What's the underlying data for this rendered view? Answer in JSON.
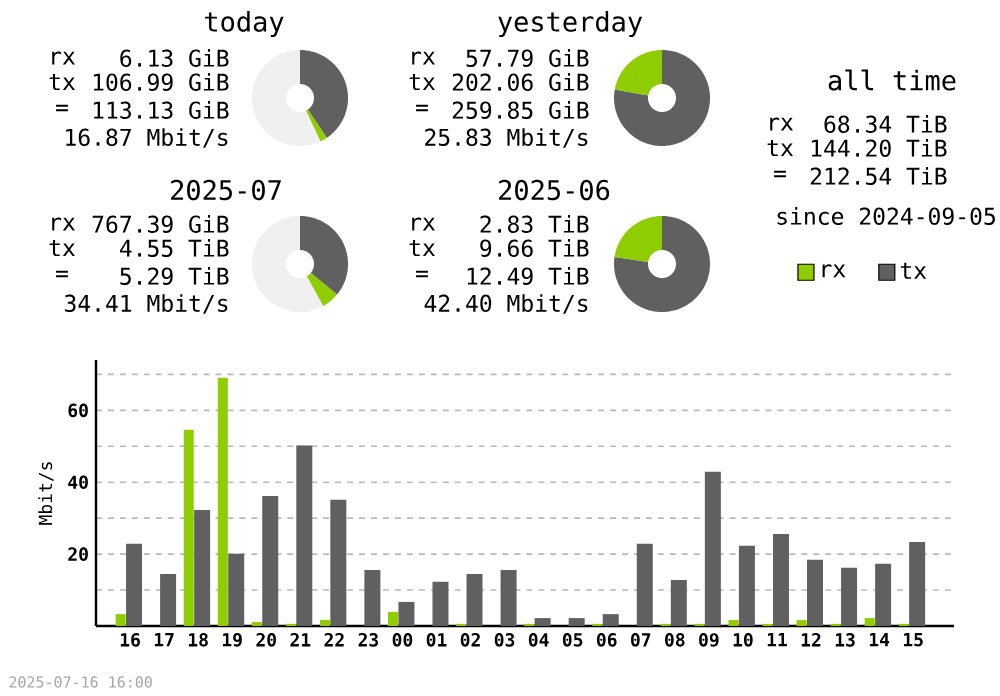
{
  "chart_data": [
    {
      "type": "donut",
      "title": "today",
      "categories": [
        null,
        null,
        null
      ],
      "values": [
        40.6,
        2.4,
        57.0
      ],
      "colors": [
        "#606060",
        "#8fcc00",
        "#f0f0f0"
      ],
      "annotations": [
        "rx",
        "6.13 GiB",
        "tx",
        "106.99 GiB",
        "=",
        "113.13 GiB",
        "16.87 Mbit/s"
      ]
    },
    {
      "type": "donut",
      "title": "yesterday",
      "categories": [
        null,
        null
      ],
      "values": [
        77.8,
        22.2
      ],
      "colors": [
        "#606060",
        "#8fcc00"
      ],
      "annotations": [
        "rx",
        "57.79 GiB",
        "tx",
        "202.06 GiB",
        "=",
        "259.85 GiB",
        "25.83 Mbit/s"
      ]
    },
    {
      "type": "other",
      "title": "all time",
      "annotations": [
        "rx",
        "68.34 TiB",
        "tx",
        "144.20 TiB",
        "=",
        "212.54 TiB",
        "since 2024-09-05"
      ]
    },
    {
      "type": "donut",
      "title": "2025-07",
      "categories": [
        null,
        null,
        null
      ],
      "values": [
        36.0,
        6.0,
        58.0
      ],
      "colors": [
        "#606060",
        "#8fcc00",
        "#f0f0f0"
      ],
      "annotations": [
        "rx",
        "767.39 GiB",
        "tx",
        "4.55 TiB",
        "=",
        "5.29 TiB",
        "34.41 Mbit/s"
      ]
    },
    {
      "type": "donut",
      "title": "2025-06",
      "categories": [
        null,
        null
      ],
      "values": [
        77.3,
        22.7
      ],
      "colors": [
        "#606060",
        "#8fcc00"
      ],
      "annotations": [
        "rx",
        "2.83 TiB",
        "tx",
        "9.66 TiB",
        "=",
        "12.49 TiB",
        "42.40 Mbit/s"
      ]
    },
    {
      "type": "bar",
      "ylabel": "Mbit/s",
      "categories": [
        "16",
        "17",
        "18",
        "19",
        "20",
        "21",
        "22",
        "23",
        "00",
        "01",
        "02",
        "03",
        "04",
        "05",
        "06",
        "07",
        "08",
        "09",
        "10",
        "11",
        "12",
        "13",
        "14",
        "15"
      ],
      "series": [
        {
          "name": "rx",
          "color": "#8fcc00",
          "values": [
            3.3,
            0,
            54.6,
            69.1,
            1.1,
            0.6,
            1.7,
            0,
            3.9,
            0,
            0.6,
            0,
            0.6,
            0,
            0.6,
            0,
            0.6,
            0.6,
            1.7,
            0.6,
            1.7,
            0.6,
            2.2,
            0.6
          ]
        },
        {
          "name": "tx",
          "color": "#606060",
          "values": [
            22.9,
            14.5,
            32.3,
            20.1,
            36.2,
            50.2,
            35.1,
            15.6,
            6.7,
            12.3,
            14.5,
            15.6,
            2.2,
            2.2,
            3.3,
            22.9,
            12.8,
            42.9,
            22.3,
            25.6,
            18.4,
            16.2,
            17.3,
            23.4
          ]
        }
      ],
      "ylim": [
        0,
        74
      ],
      "yticks": [
        {
          "value": 10,
          "label": null
        },
        20,
        {
          "value": 30,
          "label": null
        },
        40,
        {
          "value": 50,
          "label": null
        },
        60,
        {
          "value": 70,
          "label": null
        }
      ],
      "grid": "y",
      "legend": "top right",
      "annotations": [
        "2025-07-16 16:00"
      ]
    }
  ]
}
